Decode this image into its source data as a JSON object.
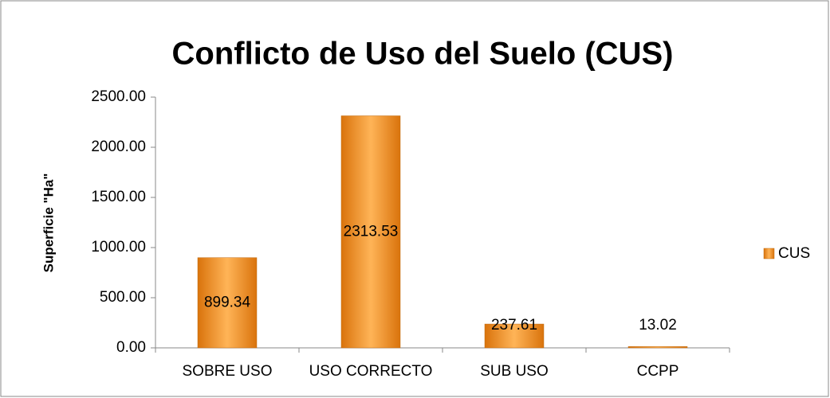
{
  "chart_data": {
    "type": "bar",
    "title": "Conflicto de Uso del Suelo (CUS)",
    "y_label": "Superficie \"Ha\"",
    "categories": [
      "SOBRE USO",
      "USO CORRECTO",
      "SUB USO",
      "CCPP"
    ],
    "series": [
      {
        "name": "CUS",
        "color": "#f39c2c",
        "values": [
          899.34,
          2313.53,
          237.61,
          13.02
        ]
      }
    ],
    "ylim": [
      0,
      2500
    ],
    "yticks": [
      {
        "value": 0,
        "label": "0.00"
      },
      {
        "value": 500,
        "label": "500.00"
      },
      {
        "value": 1000,
        "label": "1000.00"
      },
      {
        "value": 1500,
        "label": "1500.00"
      },
      {
        "value": 2000,
        "label": "2000.00"
      },
      {
        "value": 2500,
        "label": "2500.00"
      }
    ],
    "legend": "right",
    "grid": false
  }
}
